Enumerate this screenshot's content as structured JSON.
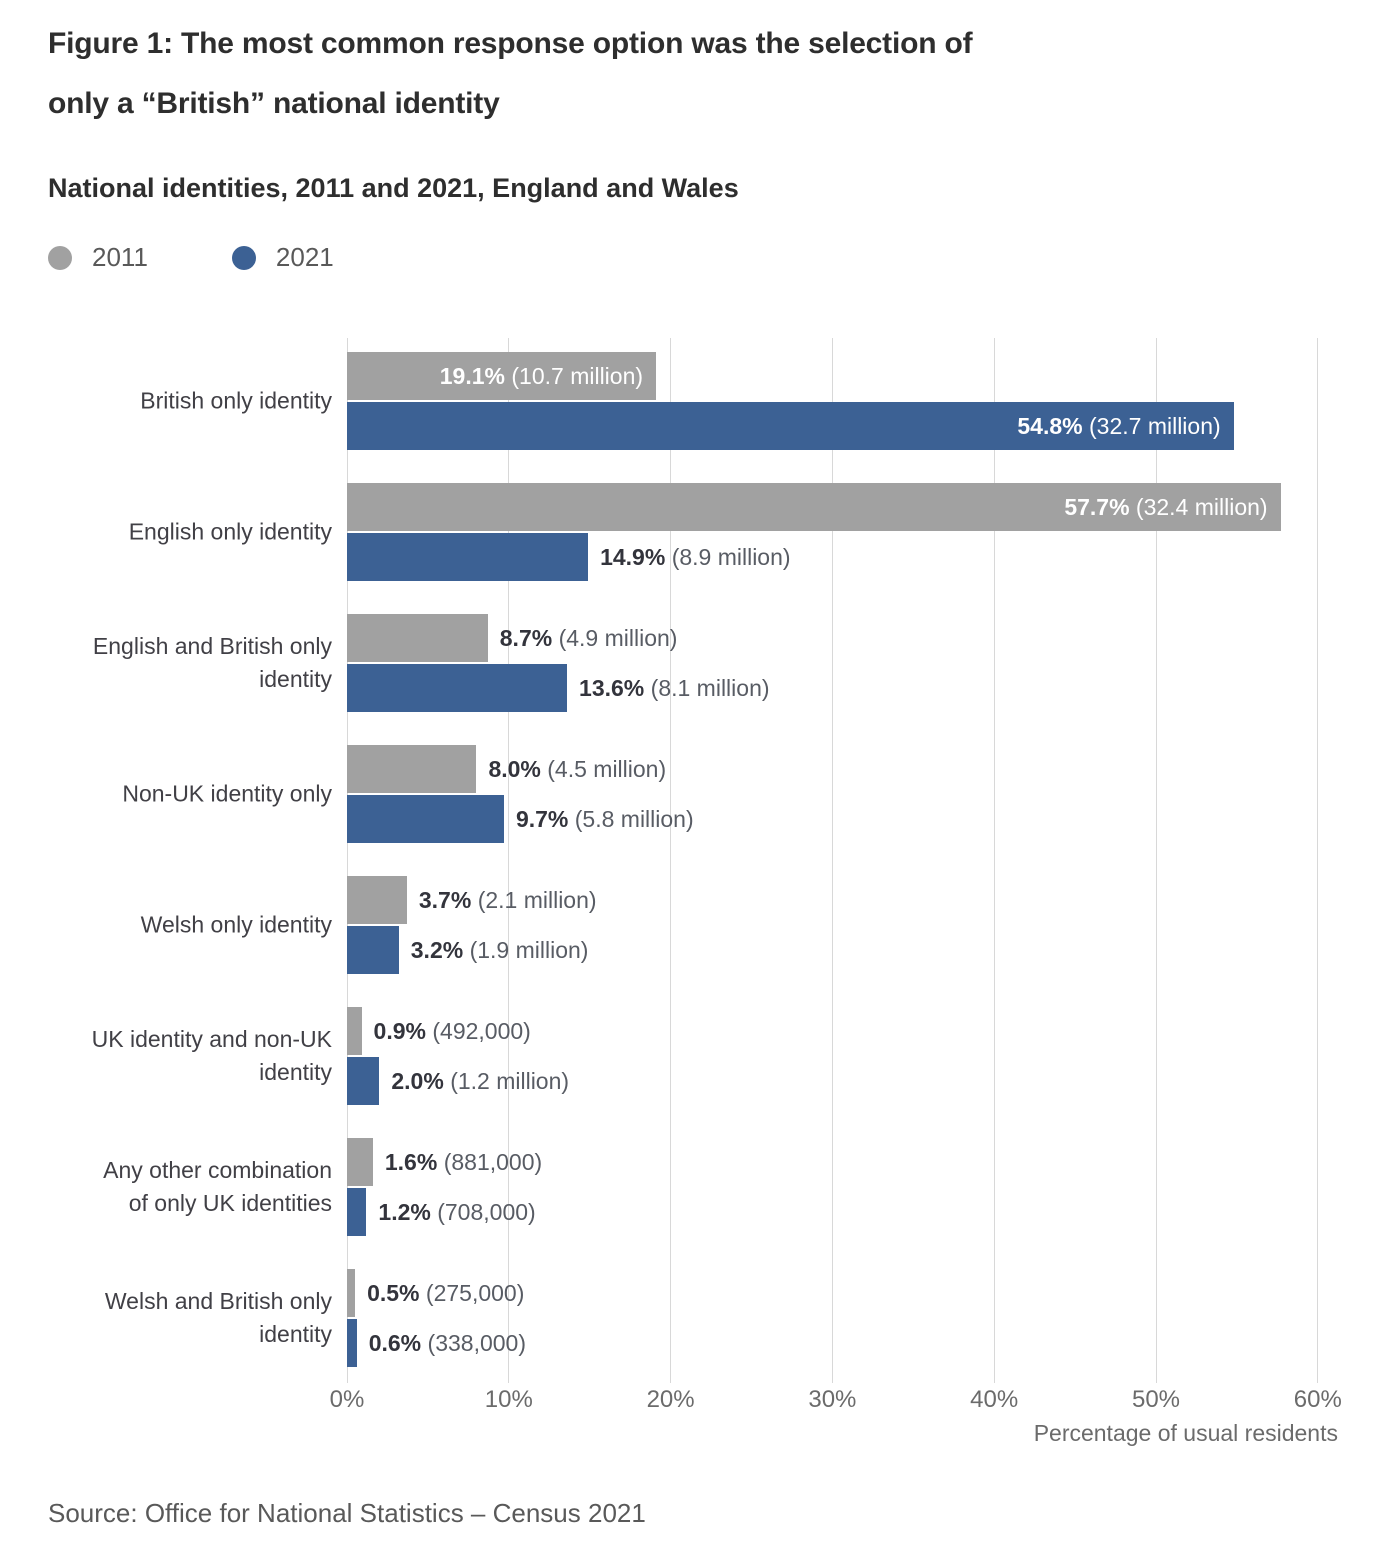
{
  "figure": {
    "title": "Figure 1: The most common response option was the selection of\nonly a “British” national identity",
    "subtitle": "National identities, 2011 and 2021, England and Wales",
    "source": "Source: Office for National Statistics – Census 2021"
  },
  "legend": [
    {
      "label": "2011",
      "color": "#a1a1a1"
    },
    {
      "label": "2021",
      "color": "#3c6194"
    }
  ],
  "colors": {
    "bar_2011": "#a1a1a1",
    "bar_2021": "#3c6194",
    "gridline": "#d8d8d8",
    "label_inside": "#ffffff",
    "label_pct": "#33343c",
    "label_count": "#585c64"
  },
  "chart_data": {
    "type": "bar",
    "orientation": "horizontal",
    "title": "National identities, 2011 and 2021, England and Wales",
    "xlabel": "Percentage of usual residents",
    "xlim": [
      0,
      60
    ],
    "xticks": [
      "0%",
      "10%",
      "20%",
      "30%",
      "40%",
      "50%",
      "60%"
    ],
    "grid": "vertical",
    "legend_position": "top-left",
    "categories": [
      "British only identity",
      "English only identity",
      "English and British only\nidentity",
      "Non-UK identity only",
      "Welsh only identity",
      "UK identity and non-UK\nidentity",
      "Any other combination\nof only UK identities",
      "Welsh and British only\nidentity"
    ],
    "series": [
      {
        "name": "2011",
        "color": "#a1a1a1",
        "bars": [
          {
            "value": 19.1,
            "pct": "19.1%",
            "count": "(10.7 million)",
            "label_inside": true
          },
          {
            "value": 57.7,
            "pct": "57.7%",
            "count": "(32.4 million)",
            "label_inside": true
          },
          {
            "value": 8.7,
            "pct": "8.7%",
            "count": "(4.9 million)",
            "label_inside": false
          },
          {
            "value": 8.0,
            "pct": "8.0%",
            "count": "(4.5 million)",
            "label_inside": false
          },
          {
            "value": 3.7,
            "pct": "3.7%",
            "count": "(2.1 million)",
            "label_inside": false
          },
          {
            "value": 0.9,
            "pct": "0.9%",
            "count": "(492,000)",
            "label_inside": false
          },
          {
            "value": 1.6,
            "pct": "1.6%",
            "count": "(881,000)",
            "label_inside": false
          },
          {
            "value": 0.5,
            "pct": "0.5%",
            "count": "(275,000)",
            "label_inside": false
          }
        ]
      },
      {
        "name": "2021",
        "color": "#3c6194",
        "bars": [
          {
            "value": 54.8,
            "pct": "54.8%",
            "count": "(32.7 million)",
            "label_inside": true
          },
          {
            "value": 14.9,
            "pct": "14.9%",
            "count": "(8.9 million)",
            "label_inside": false
          },
          {
            "value": 13.6,
            "pct": "13.6%",
            "count": "(8.1 million)",
            "label_inside": false
          },
          {
            "value": 9.7,
            "pct": "9.7%",
            "count": "(5.8 million)",
            "label_inside": false
          },
          {
            "value": 3.2,
            "pct": "3.2%",
            "count": "(1.9 million)",
            "label_inside": false
          },
          {
            "value": 2.0,
            "pct": "2.0%",
            "count": "(1.2 million)",
            "label_inside": false
          },
          {
            "value": 1.2,
            "pct": "1.2%",
            "count": "(708,000)",
            "label_inside": false
          },
          {
            "value": 0.6,
            "pct": "0.6%",
            "count": "(338,000)",
            "label_inside": false
          }
        ]
      }
    ]
  }
}
